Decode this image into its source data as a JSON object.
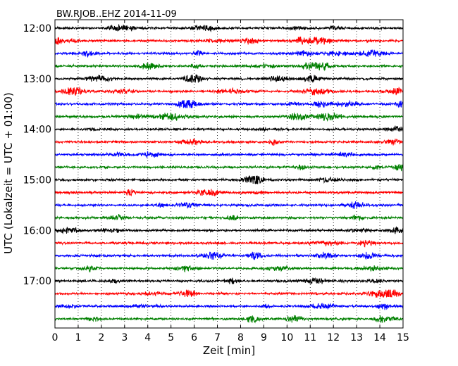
{
  "chart_data": {
    "type": "line",
    "title": "BW.RJOB..EHZ 2014-11-09",
    "xlabel": "Zeit  [min]",
    "ylabel": "UTC (Lokalzeit = UTC + 01:00)",
    "xlim": [
      0,
      15
    ],
    "x_ticks": [
      "0",
      "1",
      "2",
      "3",
      "4",
      "5",
      "6",
      "7",
      "8",
      "9",
      "10",
      "11",
      "12",
      "13",
      "14",
      "15"
    ],
    "y_ticks": [
      "12:00",
      "13:00",
      "14:00",
      "15:00",
      "16:00",
      "17:00"
    ],
    "grid": "vertical dotted at each minute",
    "trace_colors": [
      "#000000",
      "#ff0000",
      "#0000ff",
      "#008000"
    ],
    "traces": [
      {
        "start": "12:00"
      },
      {
        "start": "12:15"
      },
      {
        "start": "12:30"
      },
      {
        "start": "12:45"
      },
      {
        "start": "13:00"
      },
      {
        "start": "13:15"
      },
      {
        "start": "13:30"
      },
      {
        "start": "13:45"
      },
      {
        "start": "14:00"
      },
      {
        "start": "14:15"
      },
      {
        "start": "14:30"
      },
      {
        "start": "14:45"
      },
      {
        "start": "15:00"
      },
      {
        "start": "15:15"
      },
      {
        "start": "15:30"
      },
      {
        "start": "15:45"
      },
      {
        "start": "16:00"
      },
      {
        "start": "16:15"
      },
      {
        "start": "16:30"
      },
      {
        "start": "16:45"
      },
      {
        "start": "17:00"
      },
      {
        "start": "17:15"
      },
      {
        "start": "17:30"
      },
      {
        "start": "17:45"
      }
    ]
  }
}
